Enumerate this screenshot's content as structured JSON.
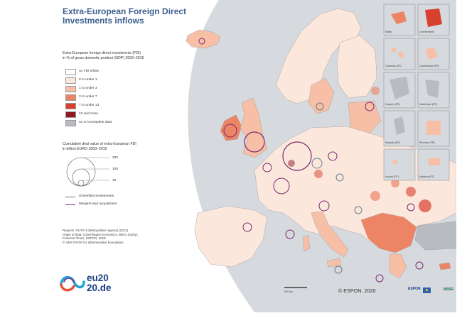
{
  "title": {
    "line1": "Extra-European Foreign Direct",
    "line2": "Investments inflows"
  },
  "legend": {
    "heading_line1": "Extra-European foreign direct investments (FDI)",
    "heading_line2": "in % of gross domestic product (GDP) 2003–2015",
    "classes": [
      {
        "label": "no FDI inflow",
        "color": "#ffffff"
      },
      {
        "label": "0 to under 1",
        "color": "#fbe7dc"
      },
      {
        "label": "1 to under 3",
        "color": "#f6bfa6"
      },
      {
        "label": "3 to under 7",
        "color": "#ee8466"
      },
      {
        "label": "7 to under 13",
        "color": "#d8402e"
      },
      {
        "label": "13 and more",
        "color": "#8c1a1f"
      },
      {
        "label": "no or incomplete data",
        "color": "#b8bcc2"
      }
    ],
    "deal_heading_line1": "Cumulative deal value of extra-European FDI",
    "deal_heading_line2": "in billion EURO 2003–2015",
    "deal_sizes": [
      "300",
      "100",
      "10"
    ],
    "line_types": [
      {
        "label": "Greenfield investments",
        "color": "#6a7a8e"
      },
      {
        "label": "Mergers and acquisitions",
        "color": "#7a2a6e"
      }
    ]
  },
  "sources": [
    "Regions: NUTS 3 (Metropolitan regions) (2013)",
    "Origin of data: Copenhagen Economics, BvD's Zephyr,",
    "Financial Times, ESPON, 2018",
    "© UMS RIATE for administrative boundaries"
  ],
  "insets": [
    "Malta",
    "Liechtenstein",
    "Canarias (ES)",
    "Guadeloupe (FR)",
    "Guyane (FR)",
    "Martinique (FR)",
    "Mayotte (FR)",
    "Réunion (FR)",
    "Açores (PT)",
    "Madeira (PT)"
  ],
  "copyright": "© ESPON, 2020",
  "scale_label": "500 km",
  "logo": {
    "line1": "eu20",
    "line2": "20.de"
  },
  "espon_mark": "ESPON",
  "bbsr_mark": "BBSR",
  "colors": {
    "title": "#3d5f8e",
    "sea": "#d6d9dd",
    "land": "#fbe7dc",
    "greenfield": "#6a7a8e",
    "mna": "#7a2a6e"
  }
}
